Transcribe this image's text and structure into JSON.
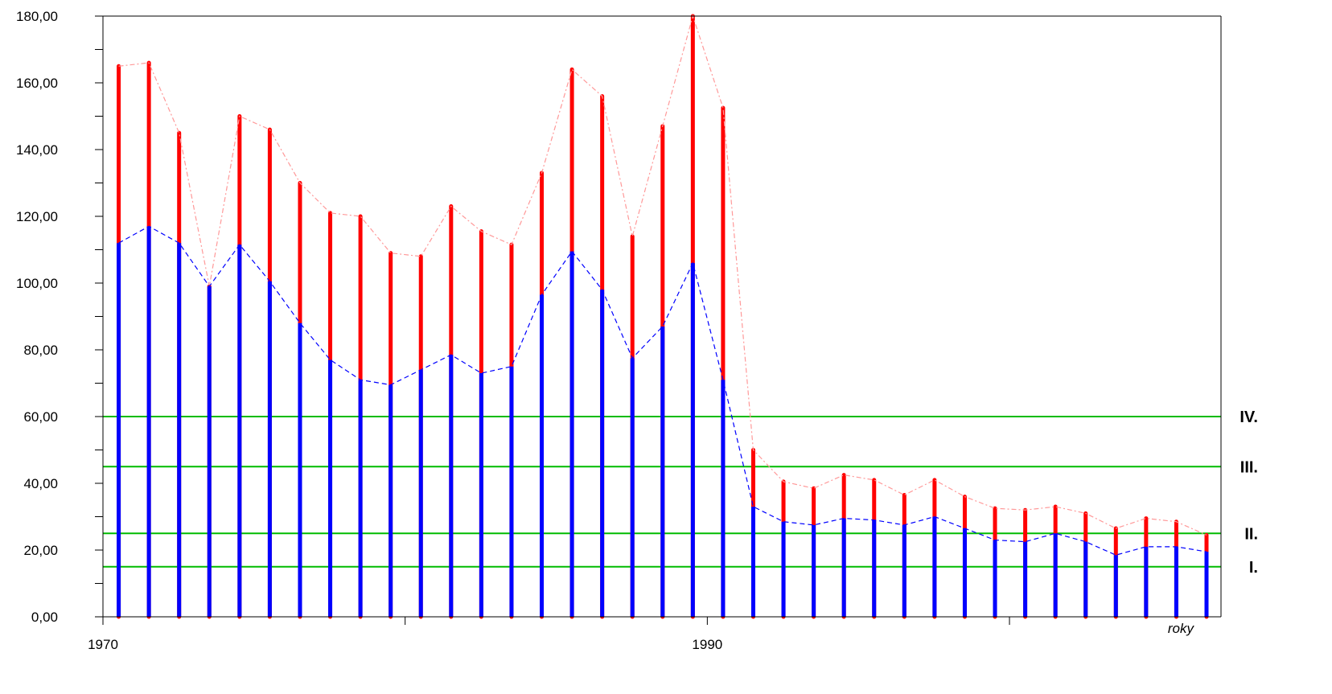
{
  "chart_data": {
    "type": "bar",
    "title": "",
    "xlabel": "roky",
    "ylabel": "",
    "ylim": [
      0,
      180
    ],
    "y_ticks": [
      "0,00",
      "20,00",
      "40,00",
      "60,00",
      "80,00",
      "100,00",
      "120,00",
      "140,00",
      "160,00",
      "180,00"
    ],
    "x_tick_labels": [
      {
        "year": 1970,
        "label": "1970"
      },
      {
        "year": 1990,
        "label": "1990"
      }
    ],
    "x": [
      1971,
      1972,
      1973,
      1974,
      1975,
      1976,
      1977,
      1978,
      1979,
      1980,
      1981,
      1982,
      1983,
      1984,
      1985,
      1986,
      1987,
      1988,
      1989,
      1990,
      1991,
      1992,
      1993,
      1994,
      1995,
      1996,
      1997,
      1998,
      1999,
      2000,
      2001,
      2002,
      2003,
      2004,
      2005,
      2006,
      2007
    ],
    "series": [
      {
        "color": "#ff0000",
        "values": [
          165.0,
          166.0,
          145.0,
          99.0,
          150.0,
          146.0,
          130.0,
          121.0,
          120.0,
          109.0,
          108.0,
          123.0,
          115.5,
          111.5,
          133.0,
          164.0,
          156.0,
          114.0,
          147.0,
          180.0,
          152.5,
          50.0,
          40.5,
          38.5,
          42.5,
          41.0,
          36.5,
          41.0,
          36.0,
          32.5,
          32.0,
          33.0,
          31.0,
          26.5,
          29.5,
          28.5,
          24.5
        ]
      },
      {
        "color": "#0000ff",
        "values": [
          112.0,
          117.0,
          112.0,
          99.0,
          111.5,
          100.5,
          88.0,
          77.0,
          71.0,
          69.5,
          74.0,
          78.5,
          73.0,
          75.0,
          96.5,
          109.5,
          98.0,
          77.5,
          87.0,
          106.0,
          71.0,
          33.0,
          28.5,
          27.5,
          29.5,
          29.0,
          27.5,
          30.0,
          26.5,
          23.0,
          22.5,
          25.0,
          22.5,
          18.5,
          21.0,
          21.0,
          19.5
        ]
      }
    ],
    "reference_lines": [
      {
        "value": 60,
        "label": "IV."
      },
      {
        "value": 45,
        "label": "III."
      },
      {
        "value": 25,
        "label": "II."
      },
      {
        "value": 15,
        "label": "I."
      }
    ],
    "colors": {
      "reference": "#00bb00",
      "axis": "#000000"
    },
    "grid": false,
    "legend": "none"
  }
}
